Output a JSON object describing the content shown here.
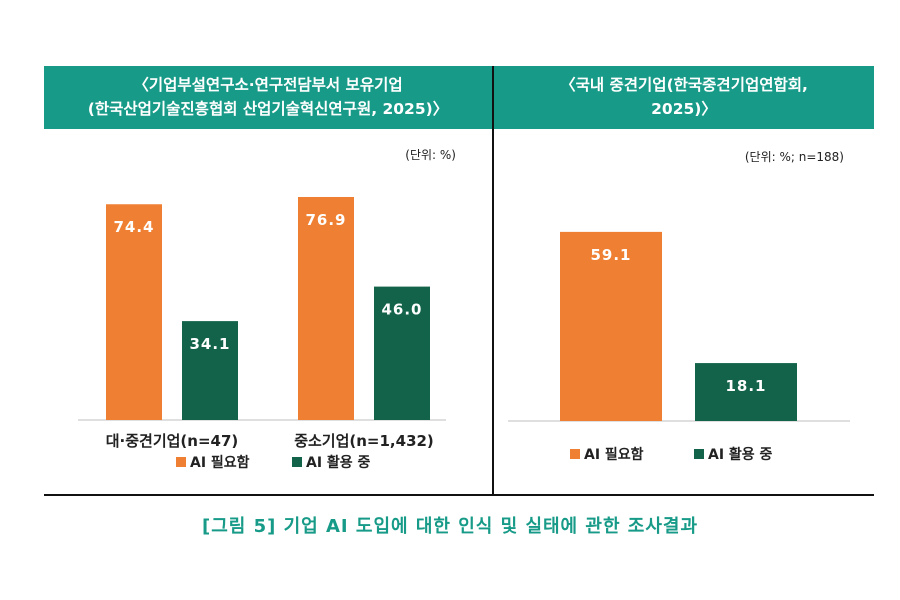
{
  "chart_data": [
    {
      "type": "bar",
      "title_line1": "〈기업부설연구소·연구전담부서 보유기업",
      "title_line2": "(한국산업기술진흥협회 산업기술혁신연구원, 2025)〉",
      "unit": "(단위: %)",
      "categories": [
        "대·중견기업(n=47)",
        "중소기업(n=1,432)"
      ],
      "series": [
        {
          "name": "AI 필요함",
          "values": [
            74.4,
            76.9
          ],
          "labels": [
            "74.4",
            "76.9"
          ],
          "color": "#ef8033"
        },
        {
          "name": "AI 활용 중",
          "values": [
            34.1,
            46.0
          ],
          "labels": [
            "34.1",
            "46.0"
          ],
          "color": "#12634a"
        }
      ],
      "ylim": [
        0,
        100
      ],
      "legend_position": "bottom"
    },
    {
      "type": "bar",
      "title_line1": "〈국내 중견기업(한국중견기업연합회,",
      "title_line2": "2025)〉",
      "unit": "(단위: %; n=188)",
      "categories": [
        ""
      ],
      "series": [
        {
          "name": "AI 필요함",
          "values": [
            59.1
          ],
          "labels": [
            "59.1"
          ],
          "color": "#ef8033"
        },
        {
          "name": "AI 활용 중",
          "values": [
            18.1
          ],
          "labels": [
            "18.1"
          ],
          "color": "#12634a"
        }
      ],
      "ylim": [
        0,
        100
      ],
      "legend_position": "bottom"
    }
  ],
  "caption": "[그림 5] 기업 AI 도입에 대한 인식 및 실태에 관한 조사결과"
}
